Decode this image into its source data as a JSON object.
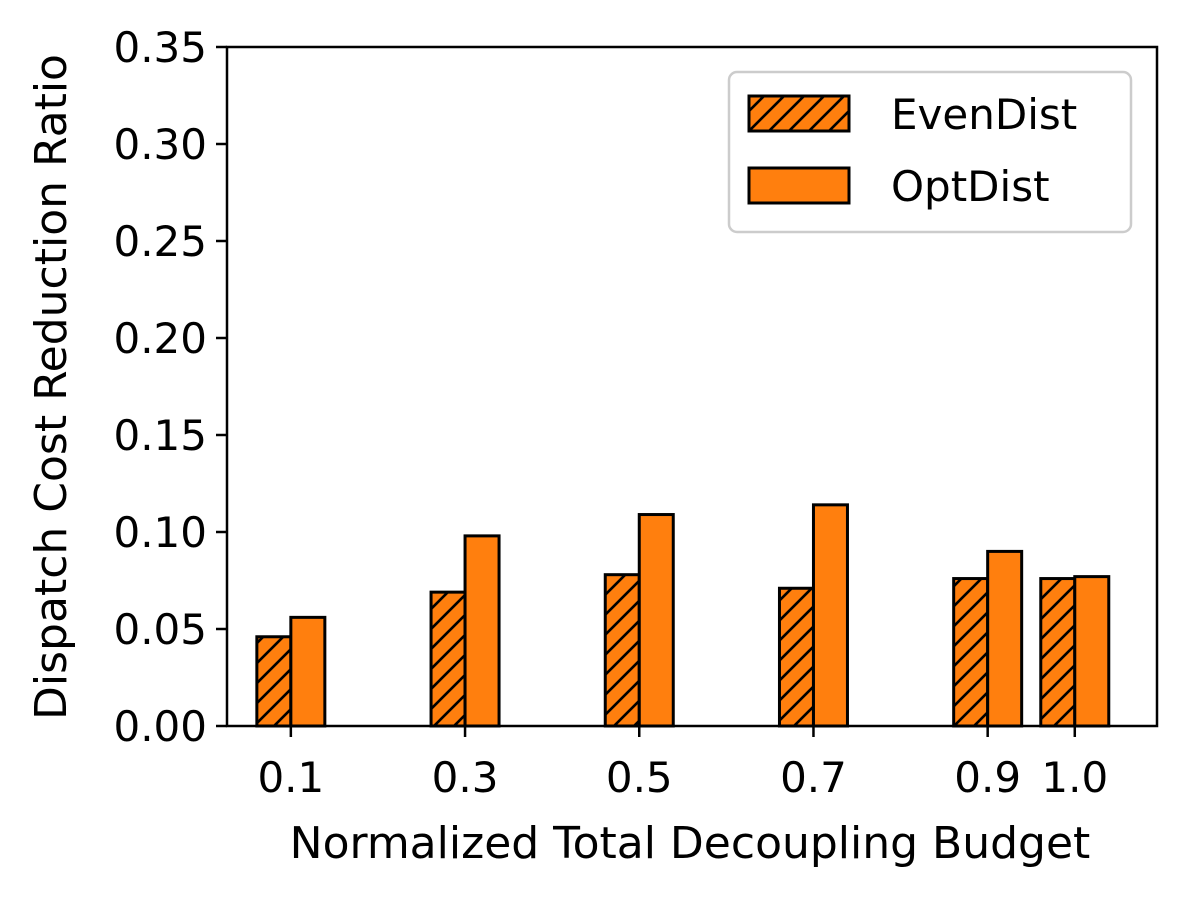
{
  "chart_data": {
    "type": "bar",
    "categories": [
      "0.1",
      "0.3",
      "0.5",
      "0.7",
      "0.9",
      "1.0"
    ],
    "x": [
      0.1,
      0.3,
      0.5,
      0.7,
      0.9,
      1.0
    ],
    "series": [
      {
        "name": "EvenDist",
        "values": [
          0.046,
          0.069,
          0.078,
          0.071,
          0.076,
          0.076
        ],
        "color": "#ff7f0e",
        "hatch": "diagonal"
      },
      {
        "name": "OptDist",
        "values": [
          0.056,
          0.098,
          0.109,
          0.114,
          0.09,
          0.077
        ],
        "color": "#ff7f0e",
        "hatch": "none"
      }
    ],
    "xlabel": "Normalized Total Decoupling Budget",
    "ylabel": "Dispatch Cost Reduction Ratio",
    "ylim": [
      0,
      0.35
    ],
    "yticks": [
      "0.00",
      "0.05",
      "0.10",
      "0.15",
      "0.20",
      "0.25",
      "0.30",
      "0.35"
    ],
    "grid": false,
    "legend": "top-right"
  }
}
